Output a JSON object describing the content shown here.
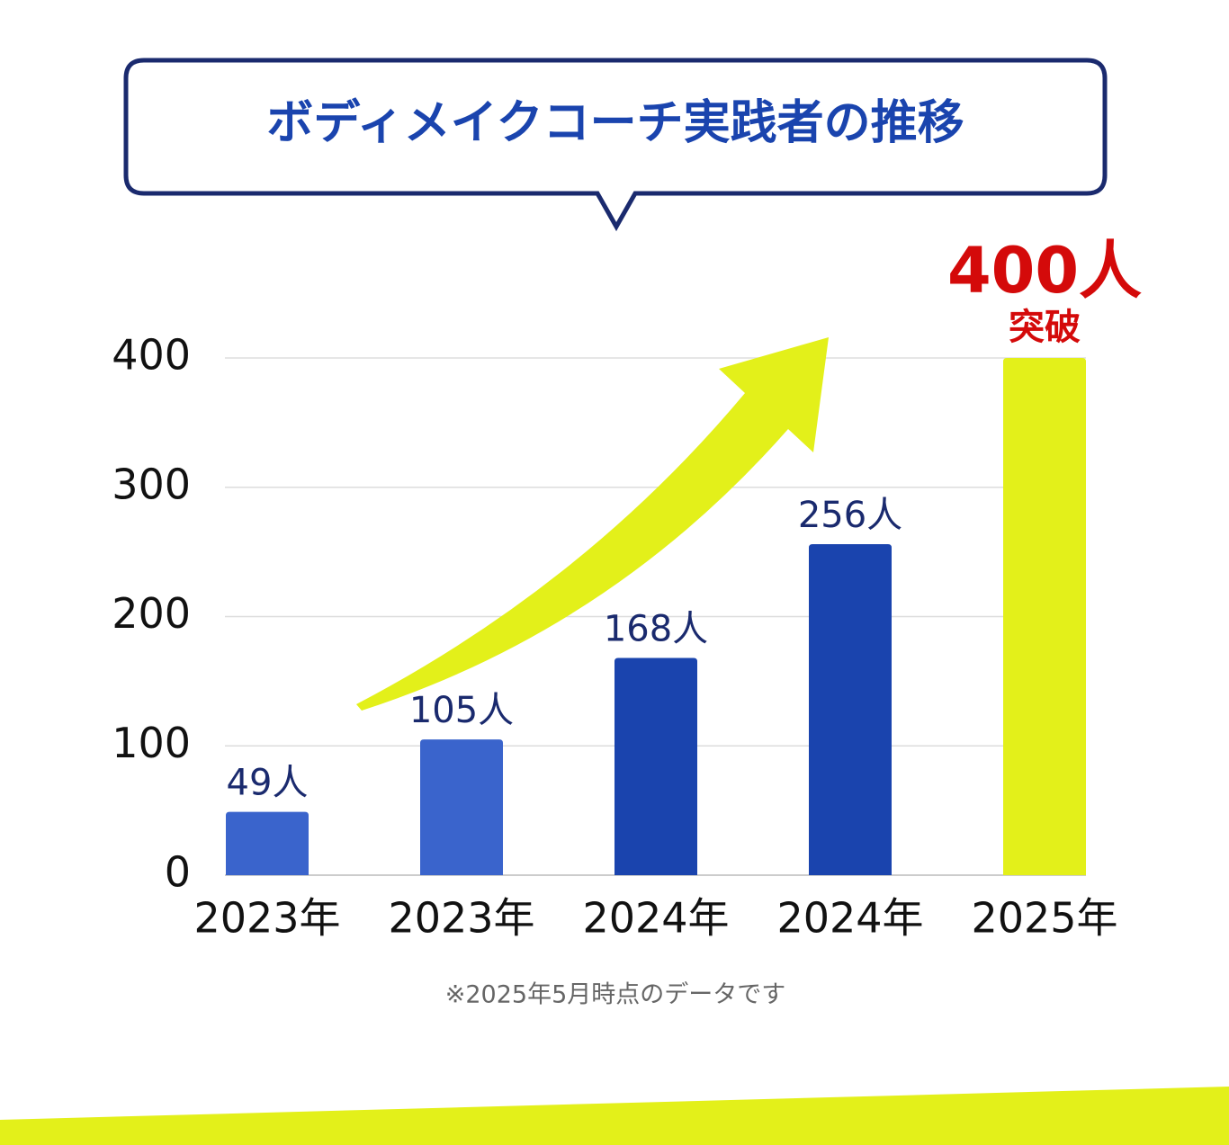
{
  "chart_data": {
    "type": "bar",
    "title": "ボディメイクコーチ実践者の推移",
    "categories": [
      "2023年",
      "2023年",
      "2024年",
      "2024年",
      "2025年"
    ],
    "values": [
      49,
      105,
      168,
      256,
      400
    ],
    "value_labels": [
      "49人",
      "105人",
      "168人",
      "256人",
      "400人"
    ],
    "colors": [
      "#3a64cc",
      "#3a64cc",
      "#1a44ae",
      "#1a44ae",
      "#e3f01a"
    ],
    "annotation": "突破",
    "footnote": "※2025年5月時点のデータです",
    "ylim": [
      0,
      400
    ],
    "yticks": [
      0,
      100,
      200,
      300,
      400
    ],
    "grid": true
  }
}
